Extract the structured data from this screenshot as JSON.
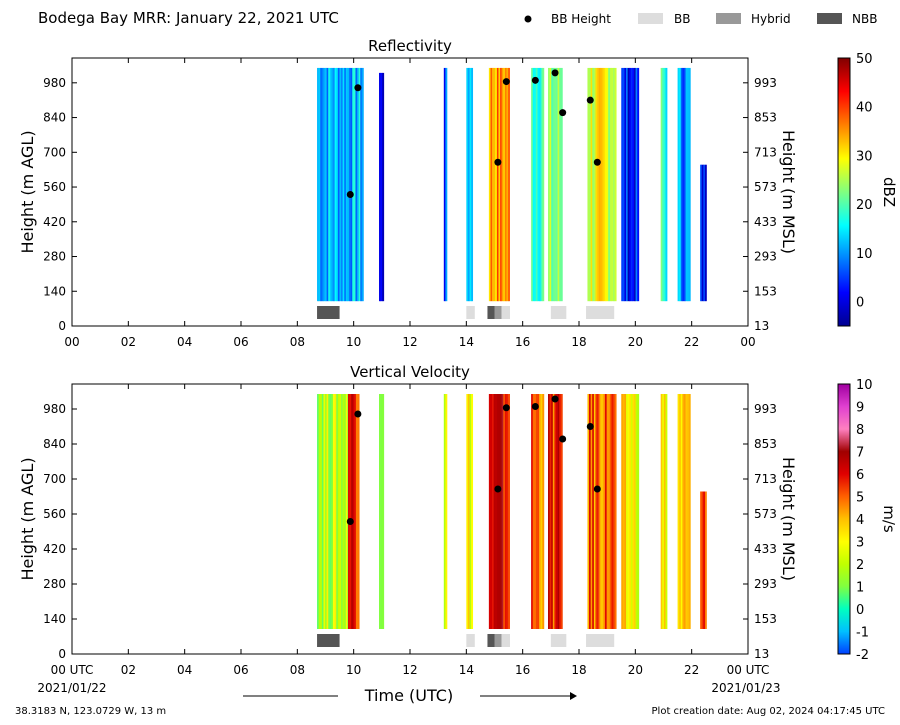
{
  "header": {
    "title": "Bodega Bay MRR:  January 22, 2021 UTC",
    "legend": [
      {
        "label": "BB Height",
        "kind": "dot",
        "color": "#000000"
      },
      {
        "label": "BB",
        "kind": "box",
        "color": "#dddddd"
      },
      {
        "label": "Hybrid",
        "kind": "box",
        "color": "#999999"
      },
      {
        "label": "NBB",
        "kind": "box",
        "color": "#555555"
      }
    ]
  },
  "footer": {
    "location": "38.3183 N, 123.0729 W, 13 m",
    "creation": "Plot creation date: Aug 02, 2024 04:17:45 UTC",
    "start_date": "2021/01/22",
    "end_date": "2021/01/23",
    "xlabel": "Time (UTC)"
  },
  "chart_data": [
    {
      "type": "heatmap",
      "title": "Reflectivity",
      "ylabel": "Height (m AGL)",
      "ylabel_right": "Height (m MSL)",
      "x_ticks": [
        "00",
        "02",
        "04",
        "06",
        "08",
        "10",
        "12",
        "14",
        "16",
        "18",
        "20",
        "22",
        "00"
      ],
      "y_ticks_left": [
        "0",
        "140",
        "280",
        "420",
        "560",
        "700",
        "840",
        "980"
      ],
      "y_ticks_right": [
        "13",
        "153",
        "293",
        "433",
        "573",
        "713",
        "853",
        "993"
      ],
      "xlim": [
        0,
        24
      ],
      "ylim": [
        0,
        1080
      ],
      "colorbar": {
        "label": "dBZ",
        "range": [
          -5,
          50
        ],
        "ticks": [
          "0",
          "10",
          "20",
          "30",
          "40",
          "50"
        ],
        "colors": [
          "#00008f",
          "#0000ff",
          "#0080ff",
          "#00ffff",
          "#80ff80",
          "#ffff00",
          "#ff8000",
          "#ff0000",
          "#800000"
        ]
      },
      "bb_height": [
        {
          "time": 9.88,
          "height": 530
        },
        {
          "time": 10.15,
          "height": 960
        },
        {
          "time": 15.12,
          "height": 660
        },
        {
          "time": 15.42,
          "height": 985
        },
        {
          "time": 16.45,
          "height": 990
        },
        {
          "time": 17.15,
          "height": 1020
        },
        {
          "time": 17.42,
          "height": 860
        },
        {
          "time": 18.4,
          "height": 910
        },
        {
          "time": 18.65,
          "height": 660
        }
      ],
      "bb_type": [
        {
          "start": 8.7,
          "end": 9.5,
          "type": "NBB"
        },
        {
          "start": 14.0,
          "end": 14.3,
          "type": "BB"
        },
        {
          "start": 14.75,
          "end": 15.0,
          "type": "NBB"
        },
        {
          "start": 15.0,
          "end": 15.25,
          "type": "Hybrid"
        },
        {
          "start": 15.25,
          "end": 15.55,
          "type": "BB"
        },
        {
          "start": 17.0,
          "end": 17.55,
          "type": "BB"
        },
        {
          "start": 18.25,
          "end": 19.25,
          "type": "BB"
        }
      ],
      "echo_columns": [
        {
          "start": 8.7,
          "end": 10.3,
          "bottom": 100,
          "top": 1040,
          "value": 12
        },
        {
          "start": 10.9,
          "end": 11.05,
          "bottom": 100,
          "top": 1020,
          "value": 0
        },
        {
          "start": 13.2,
          "end": 13.3,
          "bottom": 100,
          "top": 1040,
          "value": 5
        },
        {
          "start": 14.0,
          "end": 14.2,
          "bottom": 100,
          "top": 1040,
          "value": 14
        },
        {
          "start": 14.8,
          "end": 15.5,
          "bottom": 100,
          "top": 1040,
          "value": 35
        },
        {
          "start": 16.3,
          "end": 16.7,
          "bottom": 100,
          "top": 1040,
          "value": 20
        },
        {
          "start": 16.9,
          "end": 17.4,
          "bottom": 100,
          "top": 1040,
          "value": 22
        },
        {
          "start": 18.3,
          "end": 19.3,
          "bottom": 100,
          "top": 1040,
          "value": 28
        },
        {
          "start": 19.5,
          "end": 20.1,
          "bottom": 100,
          "top": 1040,
          "value": 3
        },
        {
          "start": 20.9,
          "end": 21.1,
          "bottom": 100,
          "top": 1040,
          "value": 18
        },
        {
          "start": 21.5,
          "end": 21.9,
          "bottom": 100,
          "top": 1040,
          "value": 10
        },
        {
          "start": 22.3,
          "end": 22.5,
          "bottom": 100,
          "top": 650,
          "value": 2
        }
      ]
    },
    {
      "type": "heatmap",
      "title": "Vertical Velocity",
      "ylabel": "Height (m AGL)",
      "ylabel_right": "Height (m MSL)",
      "x_ticks": [
        "00 UTC",
        "02",
        "04",
        "06",
        "08",
        "10",
        "12",
        "14",
        "16",
        "18",
        "20",
        "22",
        "00 UTC"
      ],
      "y_ticks_left": [
        "0",
        "140",
        "280",
        "420",
        "560",
        "700",
        "840",
        "980"
      ],
      "y_ticks_right": [
        "13",
        "153",
        "293",
        "433",
        "573",
        "713",
        "853",
        "993"
      ],
      "xlim": [
        0,
        24
      ],
      "ylim": [
        0,
        1080
      ],
      "colorbar": {
        "label": "m/s",
        "range": [
          -2,
          10
        ],
        "ticks": [
          "-2",
          "-1",
          "0",
          "1",
          "2",
          "3",
          "4",
          "5",
          "6",
          "7",
          "8",
          "9",
          "10"
        ],
        "colors": [
          "#0040ff",
          "#00c0ff",
          "#00ffc0",
          "#80ff40",
          "#c0ff00",
          "#ffff00",
          "#ffc000",
          "#ff6000",
          "#e00000",
          "#a00000",
          "#ff80c0",
          "#e040d0",
          "#a000a0"
        ]
      },
      "bb_height": [
        {
          "time": 9.88,
          "height": 530
        },
        {
          "time": 10.15,
          "height": 960
        },
        {
          "time": 15.12,
          "height": 660
        },
        {
          "time": 15.42,
          "height": 985
        },
        {
          "time": 16.45,
          "height": 990
        },
        {
          "time": 17.15,
          "height": 1020
        },
        {
          "time": 17.42,
          "height": 860
        },
        {
          "time": 18.4,
          "height": 910
        },
        {
          "time": 18.65,
          "height": 660
        }
      ],
      "bb_type": [
        {
          "start": 8.7,
          "end": 9.5,
          "type": "NBB"
        },
        {
          "start": 14.0,
          "end": 14.3,
          "type": "BB"
        },
        {
          "start": 14.75,
          "end": 15.0,
          "type": "NBB"
        },
        {
          "start": 15.0,
          "end": 15.25,
          "type": "Hybrid"
        },
        {
          "start": 15.25,
          "end": 15.55,
          "type": "BB"
        },
        {
          "start": 17.0,
          "end": 17.55,
          "type": "BB"
        },
        {
          "start": 18.25,
          "end": 19.25,
          "type": "BB"
        }
      ],
      "echo_columns": [
        {
          "start": 8.7,
          "end": 9.8,
          "bottom": 100,
          "top": 1040,
          "value": 2
        },
        {
          "start": 9.8,
          "end": 10.15,
          "bottom": 100,
          "top": 1040,
          "value": 6
        },
        {
          "start": 10.9,
          "end": 11.05,
          "bottom": 100,
          "top": 1040,
          "value": 1.8
        },
        {
          "start": 13.2,
          "end": 13.3,
          "bottom": 100,
          "top": 1040,
          "value": 2.5
        },
        {
          "start": 14.0,
          "end": 14.2,
          "bottom": 100,
          "top": 1040,
          "value": 3
        },
        {
          "start": 14.8,
          "end": 15.5,
          "bottom": 100,
          "top": 1040,
          "value": 6
        },
        {
          "start": 16.3,
          "end": 16.7,
          "bottom": 100,
          "top": 1040,
          "value": 5
        },
        {
          "start": 16.9,
          "end": 17.4,
          "bottom": 100,
          "top": 1040,
          "value": 5.5
        },
        {
          "start": 18.3,
          "end": 19.3,
          "bottom": 100,
          "top": 1040,
          "value": 5
        },
        {
          "start": 19.5,
          "end": 20.1,
          "bottom": 100,
          "top": 1040,
          "value": 3
        },
        {
          "start": 20.9,
          "end": 21.1,
          "bottom": 100,
          "top": 1040,
          "value": 3
        },
        {
          "start": 21.5,
          "end": 21.9,
          "bottom": 100,
          "top": 1040,
          "value": 3.5
        },
        {
          "start": 22.3,
          "end": 22.5,
          "bottom": 100,
          "top": 650,
          "value": 5
        }
      ]
    }
  ]
}
